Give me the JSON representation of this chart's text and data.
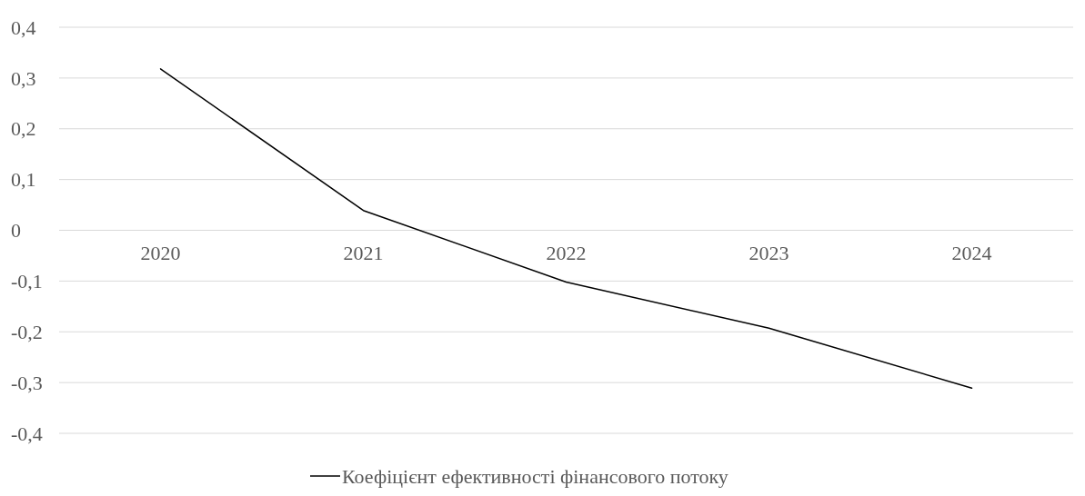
{
  "chart_data": {
    "type": "line",
    "categories": [
      "2020",
      "2021",
      "2022",
      "2023",
      "2024"
    ],
    "series": [
      {
        "name": "Коефіцієнт ефективності фінансового потоку",
        "color": "#000000",
        "values": [
          0.318,
          0.039,
          -0.102,
          -0.193,
          -0.311
        ]
      }
    ],
    "ylim": [
      -0.4,
      0.4
    ],
    "yticks": [
      {
        "value": -0.4,
        "label": "-0,4"
      },
      {
        "value": -0.3,
        "label": "-0,3"
      },
      {
        "value": -0.2,
        "label": "-0,2"
      },
      {
        "value": -0.1,
        "label": "-0,1"
      },
      0,
      {
        "value": 0.1,
        "label": "0,1"
      },
      {
        "value": 0.2,
        "label": "0,2"
      },
      {
        "value": 0.3,
        "label": "0,3"
      },
      {
        "value": 0.4,
        "label": "0,4"
      }
    ],
    "grid": "y",
    "legend": "bottom",
    "marker": "none",
    "line_style": "solid"
  }
}
